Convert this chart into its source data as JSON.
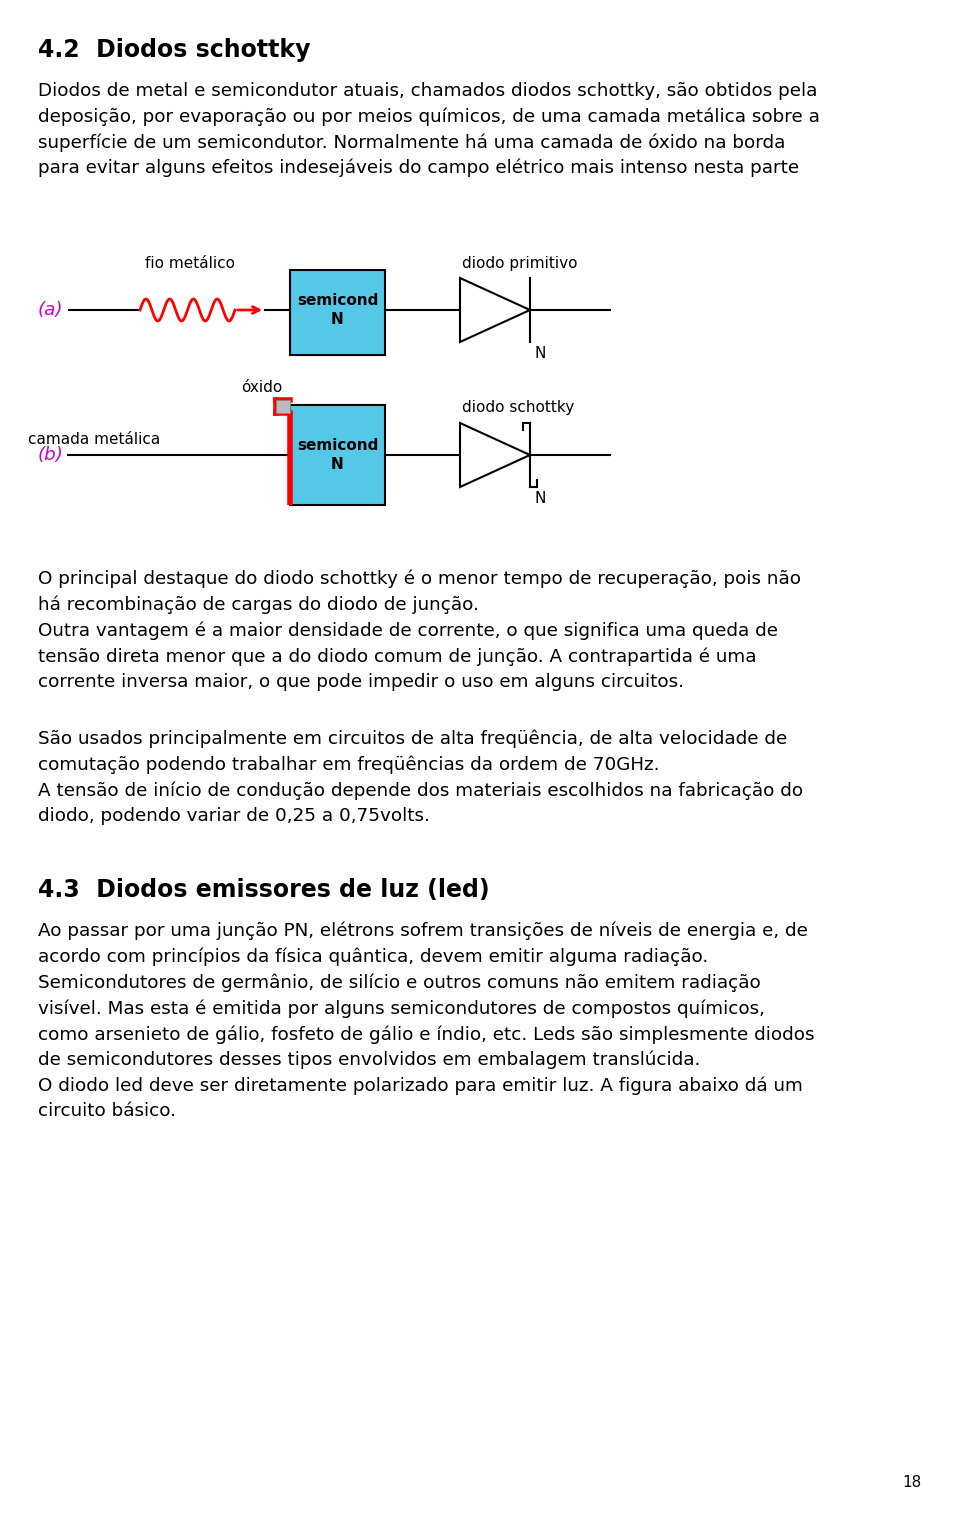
{
  "title": "4.2  Diodos schottky",
  "title_fontsize": 17,
  "body_fontsize": 13.2,
  "small_fontsize": 11,
  "bg_color": "#ffffff",
  "text_color": "#000000",
  "magenta_color": "#cc00cc",
  "red_color": "#ff0000",
  "blue_color": "#55c8e8",
  "page_number": "18",
  "para1": "Diodos de metal e semicondutor atuais, chamados diodos schottky, são obtidos pela\ndeposição, por evaporação ou por meios químicos, de uma camada metálica sobre a\nsuperfície de um semicondutor. Normalmente há uma camada de óxido na borda\npara evitar alguns efeitos indesejáveis do campo elétrico mais intenso nesta parte",
  "label_a": "(a)",
  "label_b": "(b)",
  "label_fio": "fio metálico",
  "label_semicond": "semicond\nN",
  "label_diodo_prim": "diodo primitivo",
  "label_diodo_schottky": "diodo schottky",
  "label_oxido": "óxido",
  "label_camada": "camada metálica",
  "label_N": "N",
  "para2": "O principal destaque do diodo schottky é o menor tempo de recuperação, pois não\nhá recombinação de cargas do diodo de junção.\nOutra vantagem é a maior densidade de corrente, o que significa uma queda de\ntensão direta menor que a do diodo comum de junção. A contrapartida é uma\ncorrente inversa maior, o que pode impedir o uso em alguns circuitos.",
  "para3": "São usados principalmente em circuitos de alta freqüência, de alta velocidade de\ncomutação podendo trabalhar em freqüências da ordem de 70GHz.\nA tensão de início de condução depende dos materiais escolhidos na fabricação do\ndiodo, podendo variar de 0,25 a 0,75volts.",
  "section2": "4.3  Diodos emissores de luz (led)",
  "para4_1": "Ao passar por uma junção PN, elétrons sofrem transições de níveis de energia e, de\nacordo com princípios da física quântica, devem emitir alguma radiação.\nSemicondutores de germânio, de silício e outros comuns não emitem radiação\nvisível. Mas esta é emitida por alguns semicondutores de compostos químicos,\ncomo arsenieto de gálio, fosfeto de gálio e índio, etc. Leds são simplesmente diodos\nde semicondutores desses tipos envolvidos em embalagem translúcida.\nO diodo led deve ser ",
  "para4_italic": "diretamente polarizado",
  "para4_2": " para emitir luz. A figura abaixo dá um\ncircuito básico."
}
